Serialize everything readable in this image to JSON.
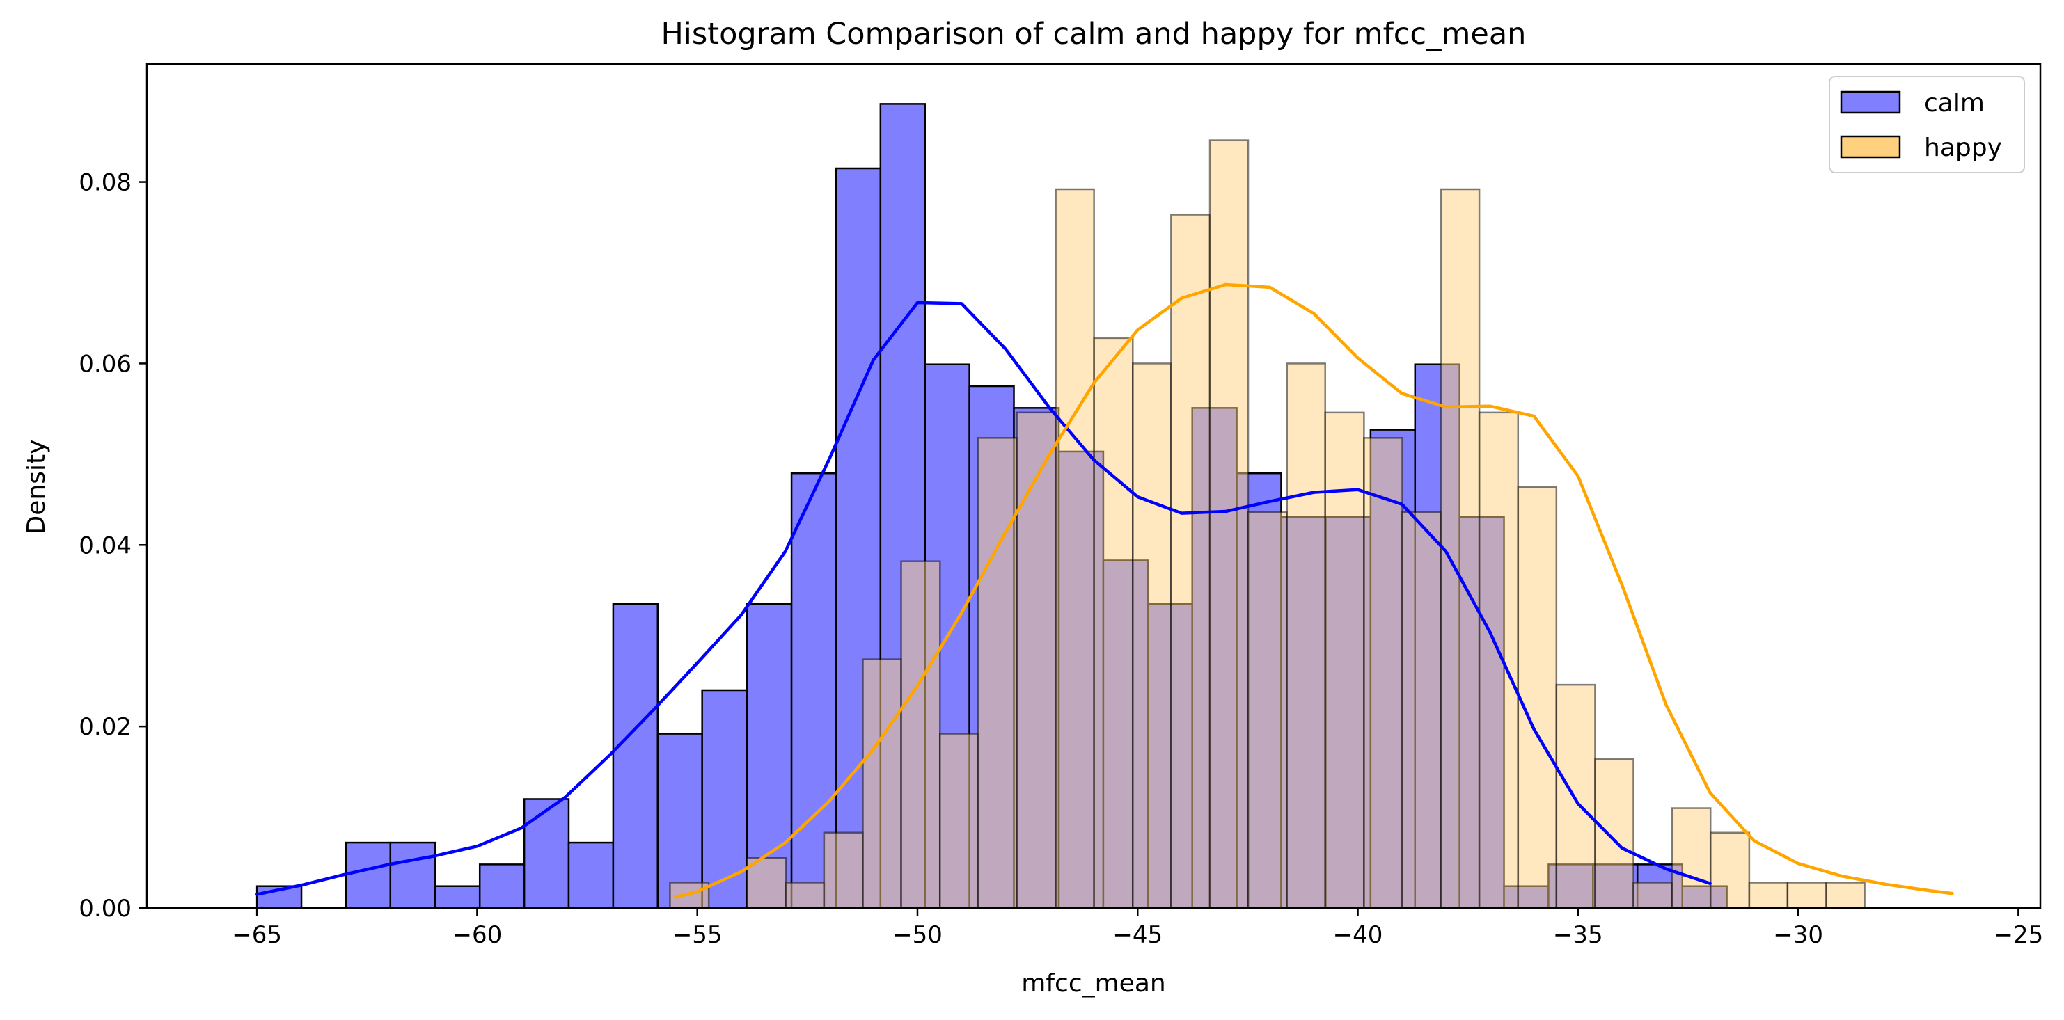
{
  "chart_data": {
    "type": "bar",
    "title": "Histogram Comparison of calm and happy for mfcc_mean",
    "xlabel": "mfcc_mean",
    "ylabel": "Density",
    "xlim": [
      -67.5,
      -24.5
    ],
    "ylim": [
      0,
      0.093
    ],
    "xticks": [
      -65,
      -60,
      -55,
      -50,
      -45,
      -40,
      -35,
      -30,
      -25
    ],
    "xtick_labels": [
      "−65",
      "−60",
      "−55",
      "−50",
      "−45",
      "−40",
      "−35",
      "−30",
      "−25"
    ],
    "yticks": [
      0.0,
      0.02,
      0.04,
      0.06,
      0.08
    ],
    "ytick_labels": [
      "0.00",
      "0.02",
      "0.04",
      "0.06",
      "0.08"
    ],
    "grid": false,
    "legend_position": "top-right",
    "series": [
      {
        "name": "calm",
        "color": "#0000ff",
        "bar_fill": "#8080ff",
        "edges": [
          -65.0,
          -63.99,
          -62.98,
          -61.97,
          -60.95,
          -59.94,
          -58.93,
          -57.92,
          -56.91,
          -55.9,
          -54.89,
          -53.87,
          -52.86,
          -51.85,
          -50.84,
          -49.83,
          -48.82,
          -47.81,
          -46.79,
          -45.78,
          -44.77,
          -43.76,
          -42.75,
          -41.74,
          -40.73,
          -39.71,
          -38.7,
          -37.69,
          -36.68,
          -35.67,
          -34.66,
          -33.65,
          -32.63,
          -31.62
        ],
        "values": [
          0.0024,
          0.0,
          0.0072,
          0.0072,
          0.0024,
          0.0048,
          0.012,
          0.0072,
          0.0335,
          0.0192,
          0.024,
          0.0335,
          0.0479,
          0.0815,
          0.0886,
          0.0599,
          0.0575,
          0.0551,
          0.0503,
          0.0383,
          0.0335,
          0.0551,
          0.0479,
          0.0431,
          0.0431,
          0.0527,
          0.0599,
          0.0431,
          0.0024,
          0.0048,
          0.0048,
          0.0048,
          0.0024
        ],
        "kde_x": [
          -65,
          -64,
          -63,
          -62,
          -61,
          -60,
          -59,
          -58,
          -57,
          -56,
          -55,
          -54,
          -53,
          -52,
          -51,
          -50,
          -49,
          -48,
          -47,
          -46,
          -45,
          -44,
          -43,
          -42,
          -41,
          -40,
          -39,
          -38,
          -37,
          -36,
          -35,
          -34,
          -33,
          -32
        ],
        "kde_y": [
          0.0015,
          0.0025,
          0.0037,
          0.0048,
          0.0057,
          0.0068,
          0.0088,
          0.0122,
          0.0168,
          0.0218,
          0.027,
          0.0323,
          0.0393,
          0.0495,
          0.0604,
          0.0667,
          0.0666,
          0.0616,
          0.0551,
          0.0494,
          0.0453,
          0.0435,
          0.0437,
          0.0448,
          0.0458,
          0.0461,
          0.0445,
          0.0393,
          0.0304,
          0.0197,
          0.0115,
          0.0066,
          0.0043,
          0.0027
        ]
      },
      {
        "name": "happy",
        "color": "#ffa500",
        "bar_fill": "#ffd17f",
        "edges": [
          -55.62,
          -54.74,
          -53.87,
          -52.99,
          -52.12,
          -51.24,
          -50.37,
          -49.49,
          -48.62,
          -47.74,
          -46.86,
          -45.99,
          -45.11,
          -44.24,
          -43.36,
          -42.49,
          -41.61,
          -40.74,
          -39.86,
          -38.99,
          -38.11,
          -37.24,
          -36.36,
          -35.49,
          -34.61,
          -33.74,
          -32.86,
          -31.99,
          -31.11,
          -30.24,
          -29.36,
          -28.49,
          -27.61,
          -26.74
        ],
        "values": [
          0.0028,
          0.0,
          0.0055,
          0.0028,
          0.0083,
          0.0274,
          0.0382,
          0.0192,
          0.0518,
          0.0546,
          0.0792,
          0.0628,
          0.06,
          0.0764,
          0.0846,
          0.0436,
          0.06,
          0.0546,
          0.0518,
          0.0436,
          0.0792,
          0.0546,
          0.0464,
          0.0246,
          0.0164,
          0.0028,
          0.011,
          0.0083,
          0.0028,
          0.0028,
          0.0028,
          0.0,
          0.0
        ],
        "kde_x": [
          -55.5,
          -55,
          -54,
          -53,
          -52,
          -51,
          -50,
          -49,
          -48,
          -47,
          -46,
          -45,
          -44,
          -43,
          -42,
          -41,
          -40,
          -39,
          -38,
          -37,
          -36,
          -35,
          -34,
          -33,
          -32,
          -31,
          -30,
          -29,
          -28,
          -27,
          -26.5
        ],
        "kde_y": [
          0.0012,
          0.0018,
          0.004,
          0.0072,
          0.0118,
          0.0175,
          0.0245,
          0.0325,
          0.0414,
          0.05,
          0.0578,
          0.0637,
          0.0672,
          0.0687,
          0.0684,
          0.0655,
          0.0606,
          0.0567,
          0.0552,
          0.0553,
          0.0542,
          0.0476,
          0.0356,
          0.0224,
          0.0127,
          0.0074,
          0.0049,
          0.0035,
          0.0026,
          0.0019,
          0.0016
        ]
      }
    ]
  }
}
